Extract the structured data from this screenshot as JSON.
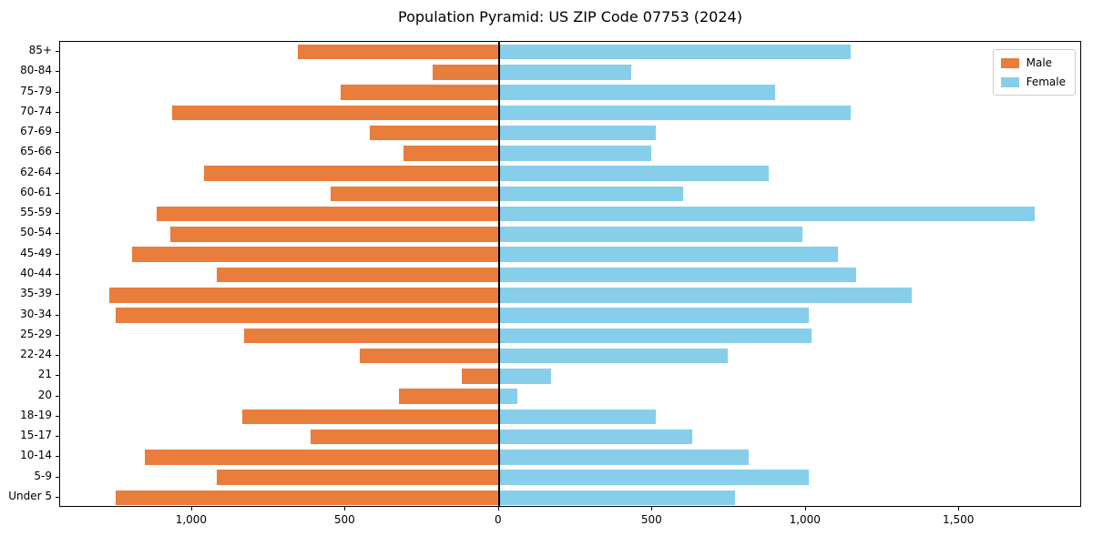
{
  "title": "Population Pyramid: US ZIP Code 07753 (2024)",
  "legend": {
    "male_label": "Male",
    "female_label": "Female"
  },
  "colors": {
    "male": "#e87d3c",
    "female": "#87ceeb",
    "axis": "#000000",
    "legend_border": "#cccccc",
    "background": "#ffffff"
  },
  "chart_data": {
    "type": "bar",
    "subtype": "population-pyramid",
    "orientation": "horizontal",
    "title": "Population Pyramid: US ZIP Code 07753 (2024)",
    "categories_top_to_bottom": [
      "85+",
      "80-84",
      "75-79",
      "70-74",
      "67-69",
      "65-66",
      "62-64",
      "60-61",
      "55-59",
      "50-54",
      "45-49",
      "40-44",
      "35-39",
      "30-34",
      "25-29",
      "22-24",
      "21",
      "20",
      "18-19",
      "15-17",
      "10-14",
      "5-9",
      "Under 5"
    ],
    "series": [
      {
        "name": "Male",
        "side": "left",
        "color": "#e87d3c",
        "values": [
          655,
          215,
          515,
          1065,
          420,
          310,
          960,
          550,
          1115,
          1070,
          1195,
          920,
          1270,
          1250,
          830,
          455,
          120,
          325,
          835,
          615,
          1155,
          920,
          1250
        ]
      },
      {
        "name": "Female",
        "side": "right",
        "color": "#87ceeb",
        "values": [
          1145,
          430,
          900,
          1145,
          510,
          495,
          880,
          600,
          1745,
          990,
          1105,
          1165,
          1345,
          1010,
          1020,
          745,
          170,
          60,
          510,
          630,
          815,
          1010,
          770
        ]
      }
    ],
    "x_tick_values": [
      -1000,
      -500,
      0,
      500,
      1000,
      1500
    ],
    "x_tick_labels": [
      "1,000",
      "500",
      "0",
      "500",
      "1,000",
      "1,500"
    ],
    "xlim": [
      -1430,
      1900
    ],
    "xlabel": "",
    "ylabel": "",
    "grid": false,
    "zero_line": true,
    "legend_position": "upper right",
    "legend_entries": [
      "Male",
      "Female"
    ]
  }
}
